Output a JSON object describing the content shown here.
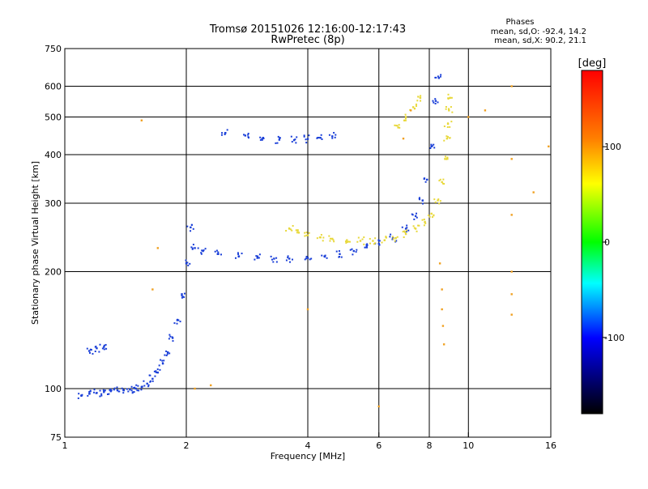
{
  "title": {
    "line1": "Tromsø 20151026 12:16:00-12:17:43",
    "line2": "RwPretec (8p)"
  },
  "phase_summary": {
    "header": "Phases",
    "line1": "mean, sd,O: -92.4, 14.2",
    "line2": "mean, sd,X:  90.2, 21.1"
  },
  "chart_data": {
    "type": "scatter",
    "xlabel": "Frequency [MHz]",
    "ylabel": "Stationary phase Virtual Height [km]",
    "x_scale": "log",
    "y_scale": "log",
    "xlim": [
      1,
      16
    ],
    "ylim": [
      75,
      750
    ],
    "x_ticks": [
      1,
      2,
      4,
      6,
      8,
      10,
      16
    ],
    "y_ticks": [
      75,
      100,
      200,
      300,
      400,
      500,
      600,
      750
    ],
    "grid": true,
    "colorbar": {
      "label": "[deg]",
      "range": [
        -180,
        180
      ],
      "ticks": [
        100,
        0,
        -100
      ],
      "colors": [
        "#ff0000",
        "#ff8000",
        "#ffff00",
        "#00ff00",
        "#00ffff",
        "#0000ff",
        "#000000"
      ]
    },
    "point_color": {
      "o_mode": "#1a3fd8",
      "x_mode": "#e8d83a",
      "x_mode_alt": "#f0a020"
    },
    "series": [
      {
        "mode": "O",
        "points": [
          [
            1.1,
            96
          ],
          [
            1.15,
            97
          ],
          [
            1.2,
            97.5
          ],
          [
            1.25,
            98
          ],
          [
            1.3,
            98.5
          ],
          [
            1.35,
            99
          ],
          [
            1.4,
            99
          ],
          [
            1.45,
            99.5
          ],
          [
            1.5,
            100
          ],
          [
            1.55,
            101
          ],
          [
            1.6,
            103
          ],
          [
            1.65,
            106
          ],
          [
            1.7,
            110
          ],
          [
            1.75,
            116
          ],
          [
            1.8,
            124
          ],
          [
            1.85,
            135
          ],
          [
            1.9,
            150
          ],
          [
            1.95,
            175
          ],
          [
            2.0,
            210
          ],
          [
            2.05,
            260
          ],
          [
            2.1,
            230
          ],
          [
            2.2,
            226
          ],
          [
            2.4,
            222
          ],
          [
            2.7,
            219
          ],
          [
            3.0,
            217
          ],
          [
            3.3,
            216
          ],
          [
            3.6,
            216
          ],
          [
            4.0,
            217
          ],
          [
            4.4,
            219
          ],
          [
            4.8,
            222
          ],
          [
            5.2,
            226
          ],
          [
            5.6,
            231
          ],
          [
            6.0,
            236
          ],
          [
            6.5,
            244
          ],
          [
            7.0,
            258
          ],
          [
            7.4,
            278
          ],
          [
            7.7,
            305
          ],
          [
            7.9,
            345
          ],
          [
            8.1,
            420
          ],
          [
            8.3,
            550
          ],
          [
            8.45,
            630
          ],
          [
            2.5,
            455
          ],
          [
            2.8,
            448
          ],
          [
            3.1,
            442
          ],
          [
            3.4,
            437
          ],
          [
            3.7,
            436
          ],
          [
            4.0,
            439
          ],
          [
            4.3,
            442
          ],
          [
            4.6,
            446
          ],
          [
            1.15,
            125
          ],
          [
            1.2,
            127
          ],
          [
            1.25,
            128
          ]
        ]
      },
      {
        "mode": "X",
        "points": [
          [
            3.6,
            258
          ],
          [
            3.8,
            252
          ],
          [
            4.0,
            248
          ],
          [
            4.3,
            245
          ],
          [
            4.6,
            243
          ],
          [
            5.0,
            241
          ],
          [
            5.4,
            240
          ],
          [
            5.8,
            240
          ],
          [
            6.2,
            241
          ],
          [
            6.6,
            244
          ],
          [
            7.0,
            250
          ],
          [
            7.4,
            258
          ],
          [
            7.8,
            268
          ],
          [
            8.1,
            282
          ],
          [
            8.4,
            305
          ],
          [
            8.6,
            340
          ],
          [
            8.75,
            390
          ],
          [
            8.85,
            440
          ],
          [
            8.9,
            480
          ],
          [
            8.95,
            520
          ],
          [
            9.0,
            560
          ],
          [
            6.7,
            470
          ],
          [
            7.0,
            500
          ],
          [
            7.3,
            530
          ],
          [
            7.6,
            560
          ]
        ]
      }
    ],
    "scattered_points": [
      [
        1.55,
        490
      ],
      [
        1.7,
        230
      ],
      [
        1.65,
        180
      ],
      [
        2.1,
        100
      ],
      [
        2.3,
        102
      ],
      [
        4.0,
        160
      ],
      [
        6.0,
        90
      ],
      [
        8.5,
        210
      ],
      [
        8.6,
        180
      ],
      [
        8.6,
        160
      ],
      [
        8.65,
        145
      ],
      [
        8.7,
        130
      ],
      [
        12.8,
        280
      ],
      [
        12.8,
        200
      ],
      [
        12.8,
        175
      ],
      [
        12.8,
        155
      ],
      [
        12.8,
        600
      ],
      [
        12.8,
        390
      ],
      [
        14.5,
        320
      ],
      [
        11.0,
        520
      ],
      [
        10.0,
        500
      ],
      [
        15.8,
        420
      ],
      [
        6.9,
        440
      ],
      [
        7.2,
        520
      ]
    ]
  }
}
